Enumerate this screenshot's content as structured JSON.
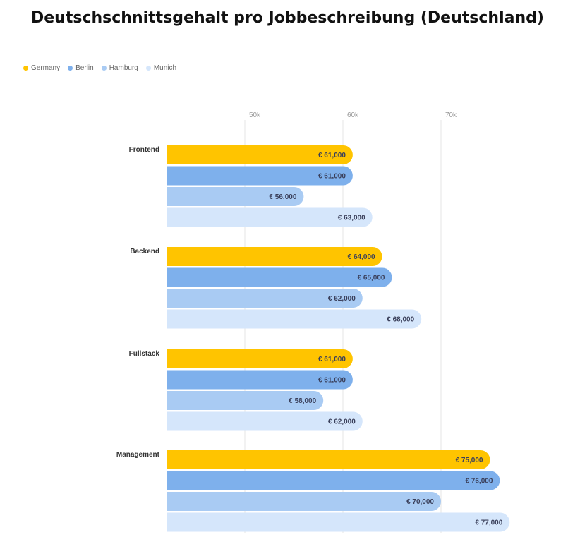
{
  "chart_data": {
    "type": "bar",
    "orientation": "horizontal",
    "title": "Deutschschnittsgehalt pro Jobbeschreibung (Deutschland)",
    "categories": [
      "Frontend",
      "Backend",
      "Fullstack",
      "Management"
    ],
    "series": [
      {
        "name": "Germany",
        "color": "#FFC400",
        "values": [
          61000,
          64000,
          61000,
          75000
        ],
        "labels": [
          "€ 61,000",
          "€ 64,000",
          "€ 61,000",
          "€ 75,000"
        ]
      },
      {
        "name": "Berlin",
        "color": "#7EB0EC",
        "values": [
          61000,
          65000,
          61000,
          76000
        ],
        "labels": [
          "€ 61,000",
          "€ 65,000",
          "€ 61,000",
          "€ 76,000"
        ]
      },
      {
        "name": "Hamburg",
        "color": "#A9CBF3",
        "values": [
          56000,
          62000,
          58000,
          70000
        ],
        "labels": [
          "€ 56,000",
          "€ 62,000",
          "€ 58,000",
          "€ 70,000"
        ]
      },
      {
        "name": "Munich",
        "color": "#D5E6FB",
        "values": [
          63000,
          68000,
          62000,
          77000
        ],
        "labels": [
          "€ 63,000",
          "€ 68,000",
          "€ 62,000",
          "€ 77,000"
        ]
      }
    ],
    "xticks": [
      {
        "value": 50000,
        "label": "50k"
      },
      {
        "value": 60000,
        "label": "60k"
      },
      {
        "value": 70000,
        "label": "70k"
      }
    ],
    "xlim": [
      42000,
      78000
    ],
    "grid": true,
    "legend_position": "top-left",
    "bar_label_color": "#3a3f5a",
    "tick_label_color": "#999999",
    "category_label_color": "#333333",
    "grid_color": "#e4e4e4"
  }
}
